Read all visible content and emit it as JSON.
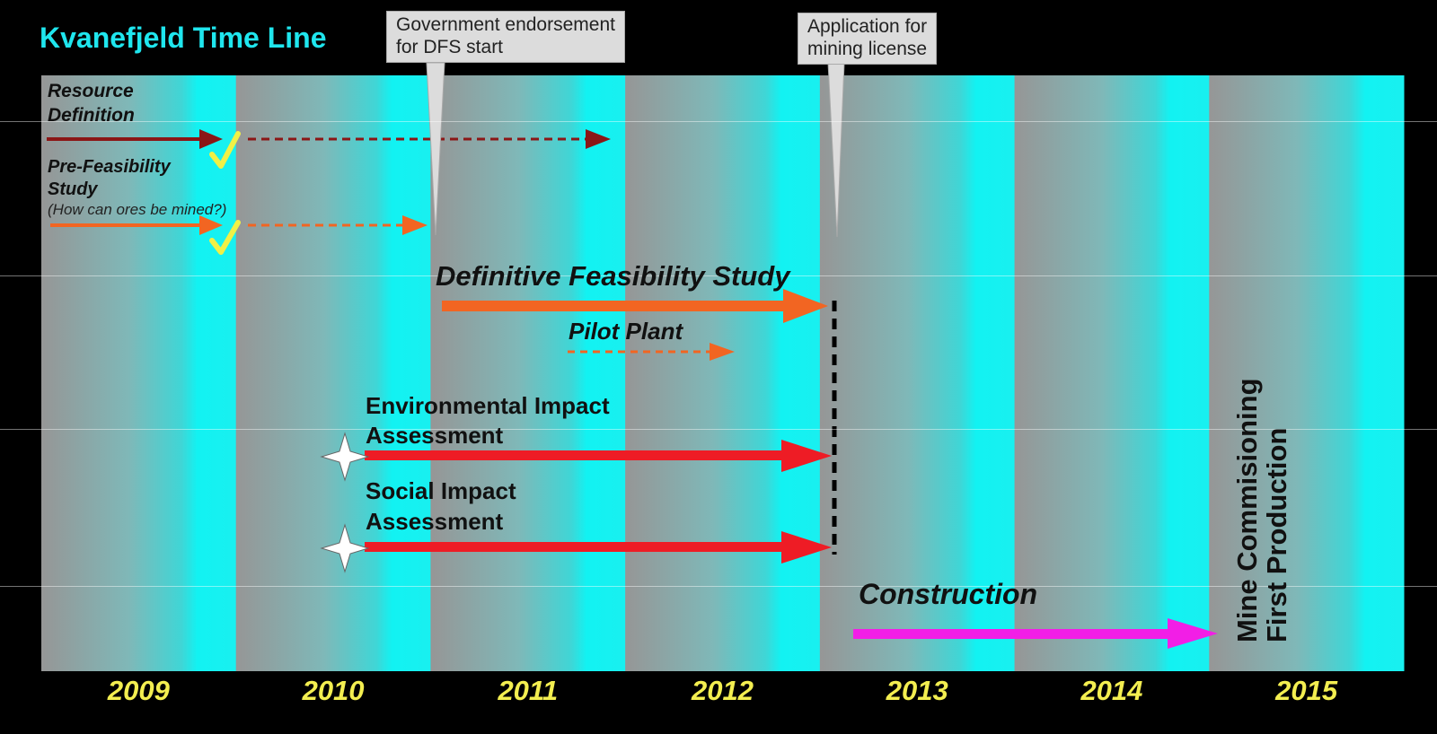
{
  "title": "Kvanefjeld Time Line",
  "callouts": {
    "gov": "Government endorsement\nfor DFS start",
    "app": "Application for\nmining license"
  },
  "years": [
    "2009",
    "2010",
    "2011",
    "2012",
    "2013",
    "2014",
    "2015"
  ],
  "tracks": {
    "resource": "Resource\nDefinition",
    "prefeas": "Pre-Feasibility\nStudy",
    "prefeas_sub": "(How can ores be mined?)",
    "dfs": "Definitive Feasibility Study",
    "pilot": "Pilot Plant",
    "eia": "Environmental Impact\nAssessment",
    "sia": "Social Impact\nAssessment",
    "construction": "Construction",
    "mine": "Mine Commisioning\nFirst Production"
  },
  "colors": {
    "title": "#1fe6ee",
    "cyan": "#19f0f0",
    "gray": "#9a9a9a",
    "resource_arrow": "#8b1616",
    "orange_arrow": "#f26522",
    "red_arrow": "#ee1c25",
    "construction_arrow": "#f21ee6",
    "check": "#f0f046",
    "year_text": "#f3ee50"
  },
  "icons": {
    "check": "check-icon",
    "start": "star-icon"
  }
}
